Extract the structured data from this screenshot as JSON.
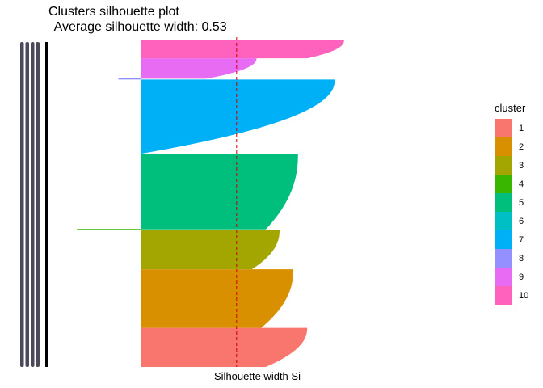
{
  "chart_data": {
    "type": "bar",
    "title": "Clusters silhouette plot",
    "subtitle": " Average silhouette width: 0.53",
    "xlabel": "Silhouette width Si",
    "ylabel": "",
    "average_silhouette": 0.53,
    "xlim": [
      -0.15,
      0.55
    ],
    "legend_title": "cluster",
    "legend_position": "right",
    "clusters": [
      {
        "name": "1",
        "color": "#F8766D",
        "size": 48,
        "start": 0.36,
        "end": 0.27
      },
      {
        "name": "2",
        "color": "#D89000",
        "size": 72,
        "start": 0.33,
        "end": 0.26
      },
      {
        "name": "3",
        "color": "#A3A500",
        "size": 48,
        "start": 0.3,
        "end": 0.24
      },
      {
        "name": "4",
        "color": "#39B600",
        "size": 1,
        "start": -0.14,
        "end": -0.14
      },
      {
        "name": "5",
        "color": "#00BF7D",
        "size": 92,
        "start": 0.34,
        "end": 0.27
      },
      {
        "name": "6",
        "color": "#00BFC4",
        "size": 0,
        "start": 0.0,
        "end": 0.0
      },
      {
        "name": "7",
        "color": "#00B0F6",
        "size": 92,
        "start": 0.42,
        "end": -0.01
      },
      {
        "name": "8",
        "color": "#9590FF",
        "size": 1,
        "start": -0.05,
        "end": -0.05
      },
      {
        "name": "9",
        "color": "#E76BF3",
        "size": 25,
        "start": 0.25,
        "end": 0.14
      },
      {
        "name": "10",
        "color": "#FF62BC",
        "size": 22,
        "start": 0.44,
        "end": 0.36
      }
    ]
  }
}
